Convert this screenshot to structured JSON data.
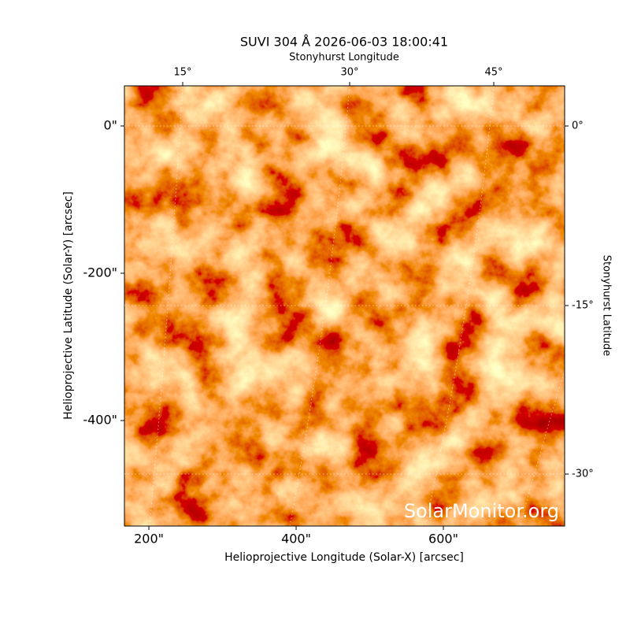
{
  "chart_data": {
    "type": "image",
    "title": "SUVI 304 Å 2026-06-03 18:00:41",
    "xlabel": "Helioprojective Longitude (Solar-X) [arcsec]",
    "ylabel": "Helioprojective Latitude (Solar-Y) [arcsec]",
    "top_label": "Stonyhurst Longitude",
    "right_label": "Stonyhurst Latitude",
    "watermark": "SolarMonitor.org",
    "xlim": [
      166.8,
      764.7
    ],
    "ylim": [
      -543.3,
      54.5
    ],
    "xticks": [
      {
        "value": 200,
        "label": "200\""
      },
      {
        "value": 400,
        "label": "400\""
      },
      {
        "value": 600,
        "label": "600\""
      }
    ],
    "yticks": [
      {
        "value": 0,
        "label": "0\""
      },
      {
        "value": -200,
        "label": "-200\""
      },
      {
        "value": -400,
        "label": "-400\""
      }
    ],
    "top_ticks": [
      {
        "value": 15,
        "label": "15°"
      },
      {
        "value": 30,
        "label": "30°"
      },
      {
        "value": 45,
        "label": "45°"
      }
    ],
    "right_ticks": [
      {
        "value": 0,
        "label": "0°"
      },
      {
        "value": -15,
        "label": "-15°"
      },
      {
        "value": -30,
        "label": "-30°"
      }
    ]
  }
}
